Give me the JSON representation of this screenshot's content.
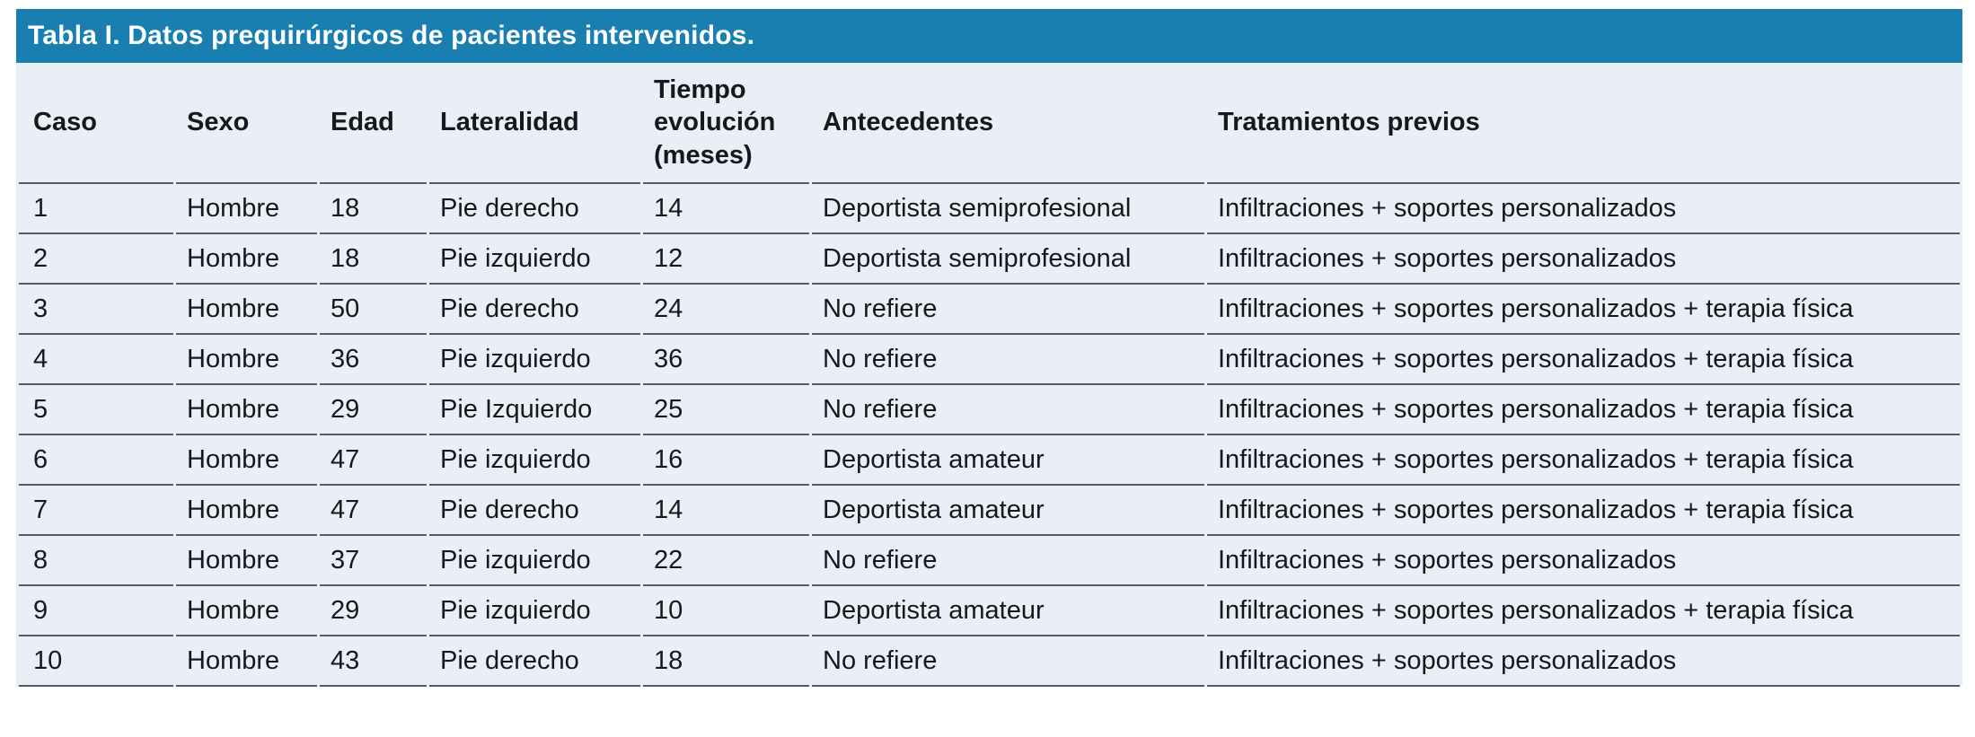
{
  "colors": {
    "title_bar_bg": "#187fb0",
    "title_text": "#ffffff",
    "table_bg": "#eaeef7",
    "separator_line": "#565b63",
    "body_text": "#17181a",
    "page_bg": "#ffffff"
  },
  "title": "Tabla I. Datos prequirúrgicos de pacientes intervenidos.",
  "table": {
    "columns": [
      {
        "key": "caso",
        "label": "Caso"
      },
      {
        "key": "sexo",
        "label": "Sexo"
      },
      {
        "key": "edad",
        "label": "Edad"
      },
      {
        "key": "lateralidad",
        "label": "Lateralidad"
      },
      {
        "key": "tiempo_evolucion_meses",
        "label": "Tiempo evolución (meses)"
      },
      {
        "key": "antecedentes",
        "label": "Antecedentes"
      },
      {
        "key": "tratamientos_previos",
        "label": "Tratamientos previos"
      }
    ],
    "rows": [
      {
        "caso": "1",
        "sexo": "Hombre",
        "edad": "18",
        "lateralidad": "Pie derecho",
        "tiempo_evolucion_meses": "14",
        "antecedentes": "Deportista semiprofesional",
        "tratamientos_previos": "Infiltraciones + soportes personalizados"
      },
      {
        "caso": "2",
        "sexo": "Hombre",
        "edad": "18",
        "lateralidad": "Pie izquierdo",
        "tiempo_evolucion_meses": "12",
        "antecedentes": "Deportista semiprofesional",
        "tratamientos_previos": "Infiltraciones + soportes personalizados"
      },
      {
        "caso": "3",
        "sexo": "Hombre",
        "edad": "50",
        "lateralidad": "Pie derecho",
        "tiempo_evolucion_meses": "24",
        "antecedentes": "No refiere",
        "tratamientos_previos": "Infiltraciones + soportes personalizados + terapia física"
      },
      {
        "caso": "4",
        "sexo": "Hombre",
        "edad": "36",
        "lateralidad": "Pie izquierdo",
        "tiempo_evolucion_meses": "36",
        "antecedentes": "No refiere",
        "tratamientos_previos": "Infiltraciones + soportes personalizados + terapia física"
      },
      {
        "caso": "5",
        "sexo": "Hombre",
        "edad": "29",
        "lateralidad": "Pie Izquierdo",
        "tiempo_evolucion_meses": "25",
        "antecedentes": "No refiere",
        "tratamientos_previos": "Infiltraciones + soportes personalizados + terapia física"
      },
      {
        "caso": "6",
        "sexo": "Hombre",
        "edad": "47",
        "lateralidad": "Pie izquierdo",
        "tiempo_evolucion_meses": "16",
        "antecedentes": "Deportista amateur",
        "tratamientos_previos": "Infiltraciones + soportes personalizados + terapia física"
      },
      {
        "caso": "7",
        "sexo": "Hombre",
        "edad": "47",
        "lateralidad": "Pie derecho",
        "tiempo_evolucion_meses": "14",
        "antecedentes": "Deportista amateur",
        "tratamientos_previos": "Infiltraciones + soportes personalizados + terapia física"
      },
      {
        "caso": "8",
        "sexo": "Hombre",
        "edad": "37",
        "lateralidad": "Pie izquierdo",
        "tiempo_evolucion_meses": "22",
        "antecedentes": "No refiere",
        "tratamientos_previos": "Infiltraciones + soportes personalizados"
      },
      {
        "caso": "9",
        "sexo": "Hombre",
        "edad": "29",
        "lateralidad": "Pie izquierdo",
        "tiempo_evolucion_meses": "10",
        "antecedentes": "Deportista amateur",
        "tratamientos_previos": "Infiltraciones + soportes personalizados + terapia física"
      },
      {
        "caso": "10",
        "sexo": "Hombre",
        "edad": "43",
        "lateralidad": "Pie derecho",
        "tiempo_evolucion_meses": "18",
        "antecedentes": "No refiere",
        "tratamientos_previos": "Infiltraciones + soportes personalizados"
      }
    ]
  }
}
